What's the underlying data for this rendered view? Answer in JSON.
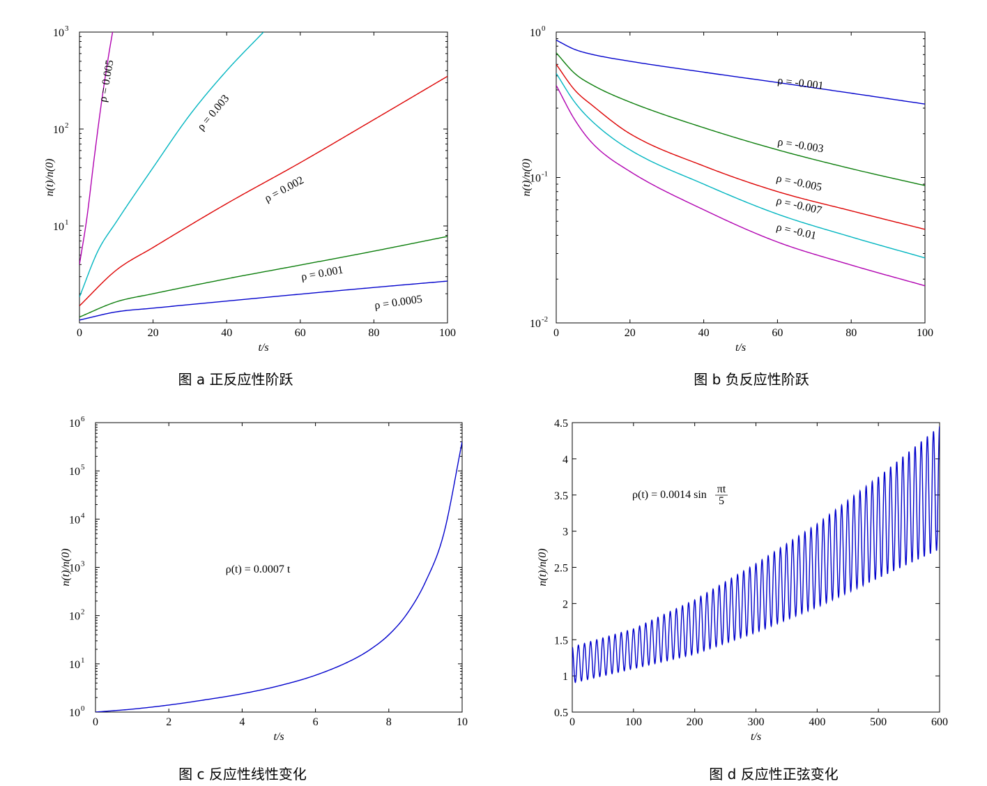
{
  "chart_data": [
    {
      "id": "a",
      "type": "line",
      "caption": "图 a  正反应性阶跃",
      "xlabel": "t/s",
      "ylabel": "n(t)/n(0)",
      "yscale": "log",
      "xlim": [
        0,
        100
      ],
      "ylim_log10": [
        0.0,
        3.0
      ],
      "xticks": [
        0,
        20,
        40,
        60,
        80,
        100
      ],
      "yticks": [
        {
          "base": "10",
          "exp": "1",
          "value": 10
        },
        {
          "base": "10",
          "exp": "2",
          "value": 100
        },
        {
          "base": "10",
          "exp": "3",
          "value": 1000
        }
      ],
      "series": [
        {
          "name": "ρ = 0.0005",
          "label": "ρ = 0.0005",
          "color": "#0000cc",
          "x": [
            0,
            10,
            20,
            40,
            60,
            80,
            100
          ],
          "y": [
            1.07,
            1.3,
            1.42,
            1.68,
            1.98,
            2.32,
            2.7
          ]
        },
        {
          "name": "ρ = 0.001",
          "label": "ρ = 0.001",
          "color": "#0a7d0a",
          "x": [
            0,
            10,
            20,
            40,
            60,
            80,
            100
          ],
          "y": [
            1.15,
            1.65,
            2.0,
            2.85,
            3.95,
            5.5,
            7.8
          ]
        },
        {
          "name": "ρ = 0.002",
          "label": "ρ = 0.002",
          "color": "#dd0000",
          "x": [
            0,
            10,
            20,
            40,
            60,
            80,
            100
          ],
          "y": [
            1.5,
            3.5,
            6.0,
            17.0,
            45.0,
            125.0,
            350.0
          ]
        },
        {
          "name": "ρ = 0.003",
          "label": "ρ = 0.003",
          "color": "#00b5c0",
          "x": [
            0,
            5,
            10,
            20,
            30,
            40,
            50
          ],
          "y": [
            1.85,
            5.5,
            11.0,
            40.0,
            140.0,
            400.0,
            1000.0
          ]
        },
        {
          "name": "ρ = 0.005",
          "label": "ρ = 0.005",
          "color": "#b000b0",
          "x": [
            0,
            2,
            4,
            6,
            8,
            9
          ],
          "y": [
            4.0,
            12.0,
            50.0,
            190.0,
            600.0,
            1000.0
          ]
        }
      ]
    },
    {
      "id": "b",
      "type": "line",
      "caption": "图 b  负反应性阶跃",
      "xlabel": "t/s",
      "ylabel": "n(t)/n(0)",
      "yscale": "log",
      "xlim": [
        0,
        100
      ],
      "ylim_log10": [
        -2.0,
        0.0
      ],
      "xticks": [
        0,
        20,
        40,
        60,
        80,
        100
      ],
      "yticks": [
        {
          "base": "10",
          "exp": "-2",
          "value": 0.01
        },
        {
          "base": "10",
          "exp": "-1",
          "value": 0.1
        },
        {
          "base": "10",
          "exp": "0",
          "value": 1
        }
      ],
      "series": [
        {
          "name": "ρ = -0.001",
          "label": "ρ = -0.001",
          "color": "#0000cc",
          "x": [
            0,
            5,
            10,
            20,
            40,
            60,
            80,
            100
          ],
          "y": [
            0.88,
            0.76,
            0.7,
            0.63,
            0.53,
            0.45,
            0.38,
            0.32
          ]
        },
        {
          "name": "ρ = -0.003",
          "label": "ρ = -0.003",
          "color": "#0a7d0a",
          "x": [
            0,
            5,
            10,
            20,
            40,
            60,
            80,
            100
          ],
          "y": [
            0.72,
            0.52,
            0.43,
            0.33,
            0.22,
            0.155,
            0.115,
            0.088
          ]
        },
        {
          "name": "ρ = -0.005",
          "label": "ρ = -0.005",
          "color": "#dd0000",
          "x": [
            0,
            5,
            10,
            20,
            40,
            60,
            80,
            100
          ],
          "y": [
            0.6,
            0.4,
            0.31,
            0.2,
            0.12,
            0.08,
            0.059,
            0.044
          ]
        },
        {
          "name": "ρ = -0.007",
          "label": "ρ = -0.007",
          "color": "#00b5c0",
          "x": [
            0,
            5,
            10,
            20,
            40,
            60,
            80,
            100
          ],
          "y": [
            0.52,
            0.33,
            0.24,
            0.155,
            0.09,
            0.056,
            0.039,
            0.028
          ]
        },
        {
          "name": "ρ = -0.01",
          "label": "ρ = -0.01",
          "color": "#b000b0",
          "x": [
            0,
            5,
            10,
            20,
            40,
            60,
            80,
            100
          ],
          "y": [
            0.43,
            0.25,
            0.17,
            0.11,
            0.06,
            0.036,
            0.025,
            0.018
          ]
        }
      ]
    },
    {
      "id": "c",
      "type": "line",
      "caption": "图 c  反应性线性变化",
      "xlabel": "t/s",
      "ylabel": "n(t)/n(0)",
      "yscale": "log",
      "xlim": [
        0,
        10
      ],
      "ylim_log10": [
        0,
        6
      ],
      "xticks": [
        0,
        2,
        4,
        6,
        8,
        10
      ],
      "yticks": [
        {
          "base": "10",
          "exp": "0",
          "value": 1
        },
        {
          "base": "10",
          "exp": "1",
          "value": 10
        },
        {
          "base": "10",
          "exp": "2",
          "value": 100
        },
        {
          "base": "10",
          "exp": "3",
          "value": 1000
        },
        {
          "base": "10",
          "exp": "4",
          "value": 10000
        },
        {
          "base": "10",
          "exp": "5",
          "value": 100000
        },
        {
          "base": "10",
          "exp": "6",
          "value": 1000000
        }
      ],
      "annotation": "ρ(t) = 0.0007 t",
      "series": [
        {
          "name": "ρ(t) = 0.0007 t",
          "color": "#0000cc",
          "x": [
            0,
            1,
            2,
            3,
            4,
            5,
            6,
            7,
            7.5,
            8,
            8.5,
            9,
            9.5,
            10
          ],
          "y": [
            1.0,
            1.15,
            1.4,
            1.8,
            2.4,
            3.5,
            5.8,
            12.0,
            20.0,
            40.0,
            110.0,
            500.0,
            5000.0,
            400000.0
          ]
        }
      ]
    },
    {
      "id": "d",
      "type": "line",
      "caption": "图 d  反应性正弦变化",
      "xlabel": "t/s",
      "ylabel": "n(t)/n(0)",
      "yscale": "linear",
      "xlim": [
        0,
        600
      ],
      "ylim": [
        0.5,
        4.5
      ],
      "xticks": [
        0,
        100,
        200,
        300,
        400,
        500,
        600
      ],
      "yticks": [
        0.5,
        1,
        1.5,
        2,
        2.5,
        3,
        3.5,
        4,
        4.5
      ],
      "annotation_lhs": "ρ(t) = 0.0014 sin",
      "annotation_num": "πt",
      "annotation_den": "5",
      "series": [
        {
          "name": "ρ(t) = 0.0014 sin πt/5",
          "color": "#0000cc",
          "period": 10,
          "envelope_t": [
            0,
            100,
            200,
            300,
            400,
            500,
            600
          ],
          "lower": [
            0.9,
            1.1,
            1.3,
            1.6,
            1.95,
            2.35,
            2.75
          ],
          "upper": [
            1.4,
            1.65,
            2.05,
            2.55,
            3.1,
            3.75,
            4.45
          ]
        }
      ]
    }
  ]
}
